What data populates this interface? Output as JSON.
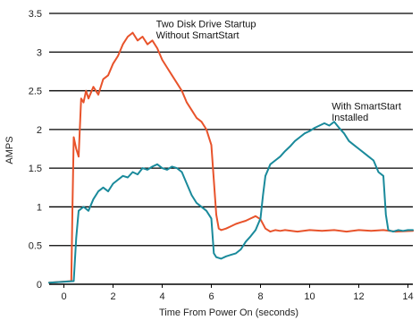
{
  "chart_data": {
    "type": "line",
    "xlabel": "Time From Power On (seconds)",
    "ylabel": "AMPS",
    "xlim": [
      -0.6,
      14.2
    ],
    "ylim": [
      0,
      3.5
    ],
    "xticks": [
      0,
      2,
      4,
      6,
      8,
      10,
      12,
      14
    ],
    "yticks": [
      0,
      0.5,
      1,
      1.5,
      2,
      2.5,
      3,
      3.5
    ],
    "grid": "horizontal",
    "annotations": [
      {
        "lines": [
          "Two Disk Drive Startup",
          "Without SmartStart"
        ],
        "x": 3.75,
        "y": 3.32
      },
      {
        "lines": [
          "With SmartStart",
          "Installed"
        ],
        "x": 10.9,
        "y": 2.26
      }
    ],
    "series": [
      {
        "color": "#e8532b",
        "x": [
          -0.6,
          0.3,
          0.35,
          0.4,
          0.5,
          0.6,
          0.7,
          0.8,
          0.9,
          1.0,
          1.2,
          1.4,
          1.6,
          1.8,
          2.0,
          2.2,
          2.4,
          2.6,
          2.8,
          3.0,
          3.2,
          3.4,
          3.6,
          3.8,
          4.0,
          4.2,
          4.4,
          4.6,
          4.8,
          5.0,
          5.2,
          5.4,
          5.6,
          5.8,
          6.0,
          6.2,
          6.3,
          6.4,
          6.6,
          6.8,
          7.0,
          7.2,
          7.4,
          7.6,
          7.8,
          8.0,
          8.2,
          8.4,
          8.6,
          8.8,
          9.0,
          9.5,
          10.0,
          10.5,
          11.0,
          11.5,
          12.0,
          12.5,
          13.0,
          13.5,
          14.2
        ],
        "y": [
          0.02,
          0.04,
          1.0,
          1.9,
          1.75,
          1.65,
          2.4,
          2.35,
          2.5,
          2.4,
          2.55,
          2.45,
          2.65,
          2.7,
          2.85,
          2.95,
          3.1,
          3.2,
          3.25,
          3.15,
          3.2,
          3.1,
          3.15,
          3.05,
          2.9,
          2.8,
          2.7,
          2.6,
          2.5,
          2.35,
          2.25,
          2.15,
          2.1,
          2.0,
          1.8,
          0.9,
          0.72,
          0.7,
          0.72,
          0.75,
          0.78,
          0.8,
          0.82,
          0.85,
          0.88,
          0.84,
          0.72,
          0.68,
          0.7,
          0.69,
          0.7,
          0.68,
          0.7,
          0.69,
          0.7,
          0.68,
          0.7,
          0.69,
          0.7,
          0.68,
          0.69
        ]
      },
      {
        "color": "#1a8a9b",
        "x": [
          -0.6,
          0.4,
          0.5,
          0.6,
          0.8,
          1.0,
          1.2,
          1.4,
          1.6,
          1.8,
          2.0,
          2.2,
          2.4,
          2.6,
          2.8,
          3.0,
          3.2,
          3.4,
          3.6,
          3.8,
          4.0,
          4.2,
          4.4,
          4.6,
          4.8,
          5.0,
          5.2,
          5.4,
          5.6,
          5.8,
          6.0,
          6.1,
          6.2,
          6.4,
          6.6,
          6.8,
          7.0,
          7.2,
          7.4,
          7.6,
          7.8,
          8.0,
          8.1,
          8.2,
          8.4,
          8.6,
          8.8,
          9.0,
          9.2,
          9.4,
          9.6,
          9.8,
          10.0,
          10.2,
          10.4,
          10.6,
          10.8,
          11.0,
          11.2,
          11.4,
          11.6,
          11.8,
          12.0,
          12.2,
          12.4,
          12.6,
          12.8,
          13.0,
          13.1,
          13.2,
          13.4,
          13.6,
          13.8,
          14.0,
          14.2
        ],
        "y": [
          0.02,
          0.04,
          0.6,
          0.95,
          1.0,
          0.95,
          1.1,
          1.2,
          1.25,
          1.2,
          1.3,
          1.35,
          1.4,
          1.38,
          1.45,
          1.42,
          1.5,
          1.48,
          1.52,
          1.55,
          1.5,
          1.48,
          1.52,
          1.5,
          1.45,
          1.3,
          1.15,
          1.05,
          1.0,
          0.95,
          0.85,
          0.4,
          0.35,
          0.33,
          0.36,
          0.38,
          0.4,
          0.45,
          0.55,
          0.62,
          0.7,
          0.85,
          1.15,
          1.4,
          1.55,
          1.6,
          1.65,
          1.72,
          1.78,
          1.85,
          1.9,
          1.95,
          1.98,
          2.02,
          2.05,
          2.08,
          2.05,
          2.1,
          2.02,
          1.95,
          1.85,
          1.8,
          1.75,
          1.7,
          1.65,
          1.6,
          1.45,
          1.4,
          0.9,
          0.7,
          0.68,
          0.7,
          0.69,
          0.7,
          0.7
        ]
      }
    ]
  }
}
